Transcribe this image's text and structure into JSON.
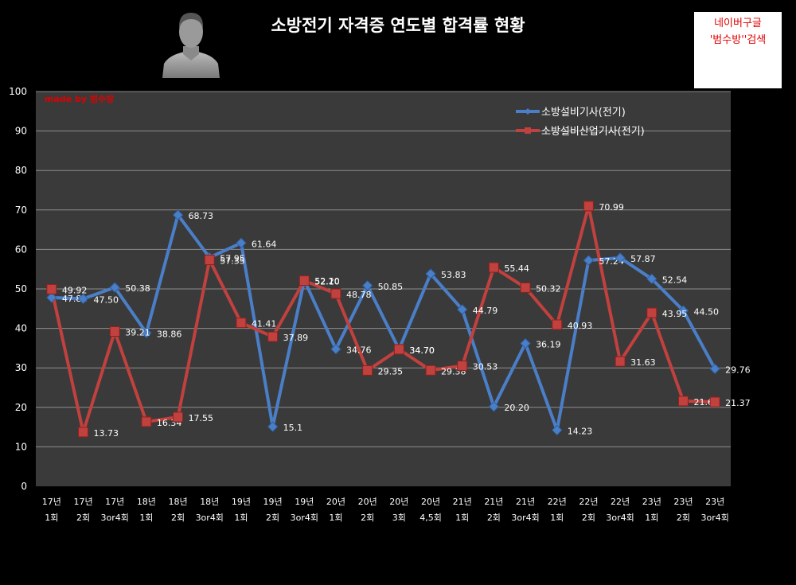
{
  "header": {
    "title": "소방전기 자격증 연도별 합격률 현황",
    "ad_line1": "네이버구글",
    "ad_line2": "'범수방''검색",
    "made_by": "made by  범수방"
  },
  "colors": {
    "background": "#000000",
    "plot_area": "#3a3a3a",
    "series1": "#4a7fc8",
    "series2": "#c0413e",
    "grid": "#8c8c8c"
  },
  "chart_data": {
    "type": "line",
    "ylim": [
      0,
      100
    ],
    "yticks": [
      0,
      10,
      20,
      30,
      40,
      50,
      60,
      70,
      80,
      90,
      100
    ],
    "grid": true,
    "legend_position": "top-right",
    "categories": [
      [
        "17년",
        "1회"
      ],
      [
        "17년",
        "2회"
      ],
      [
        "17년",
        "3or4회"
      ],
      [
        "18년",
        "1회"
      ],
      [
        "18년",
        "2회"
      ],
      [
        "18년",
        "3or4회"
      ],
      [
        "19년",
        "1회"
      ],
      [
        "19년",
        "2회"
      ],
      [
        "19년",
        "3or4회"
      ],
      [
        "20년",
        "1회"
      ],
      [
        "20년",
        "2회"
      ],
      [
        "20년",
        "3회"
      ],
      [
        "20년",
        "4,5회"
      ],
      [
        "21년",
        "1회"
      ],
      [
        "21년",
        "2회"
      ],
      [
        "21년",
        "3or4회"
      ],
      [
        "22년",
        "1회"
      ],
      [
        "22년",
        "2회"
      ],
      [
        "22년",
        "3or4회"
      ],
      [
        "23년",
        "1회"
      ],
      [
        "23년",
        "2회"
      ],
      [
        "23년",
        "3or4회"
      ]
    ],
    "series": [
      {
        "name": "소방설비기사(전기)",
        "marker": "diamond",
        "values": [
          47.81,
          47.5,
          50.38,
          38.86,
          68.73,
          57.95,
          61.64,
          15.1,
          52.2,
          34.76,
          50.85,
          34.7,
          53.83,
          44.79,
          20.2,
          36.19,
          14.23,
          57.24,
          57.87,
          52.54,
          44.5,
          29.76
        ],
        "labels": [
          "47.81",
          "47.50",
          "50.38",
          "38.86",
          "68.73",
          "57.95",
          "61.64",
          "15.1",
          "52.20",
          "34.76",
          "50.85",
          "34.70",
          "53.83",
          "44.79",
          "20.20",
          "36.19",
          "14.23",
          "57.24",
          "57.87",
          "52.54",
          "44.50",
          "29.76"
        ]
      },
      {
        "name": "소방설비산업기사(전기)",
        "marker": "square",
        "values": [
          49.92,
          13.73,
          39.21,
          16.34,
          17.55,
          57.35,
          41.41,
          37.89,
          52.1,
          48.78,
          29.35,
          34.7,
          29.38,
          30.53,
          55.44,
          50.32,
          40.93,
          70.99,
          31.63,
          43.95,
          21.6,
          21.37
        ],
        "labels": [
          "49.92",
          "13.73",
          "39.21",
          "16.34",
          "17.55",
          "57.35",
          "41.41",
          "37.89",
          "52.10",
          "48.78",
          "29.35",
          "34.70",
          "29.38",
          "30.53",
          "55.44",
          "50.32",
          "40.93",
          "70.99",
          "31.63",
          "43.95",
          "21.60",
          "21.37"
        ]
      }
    ]
  }
}
